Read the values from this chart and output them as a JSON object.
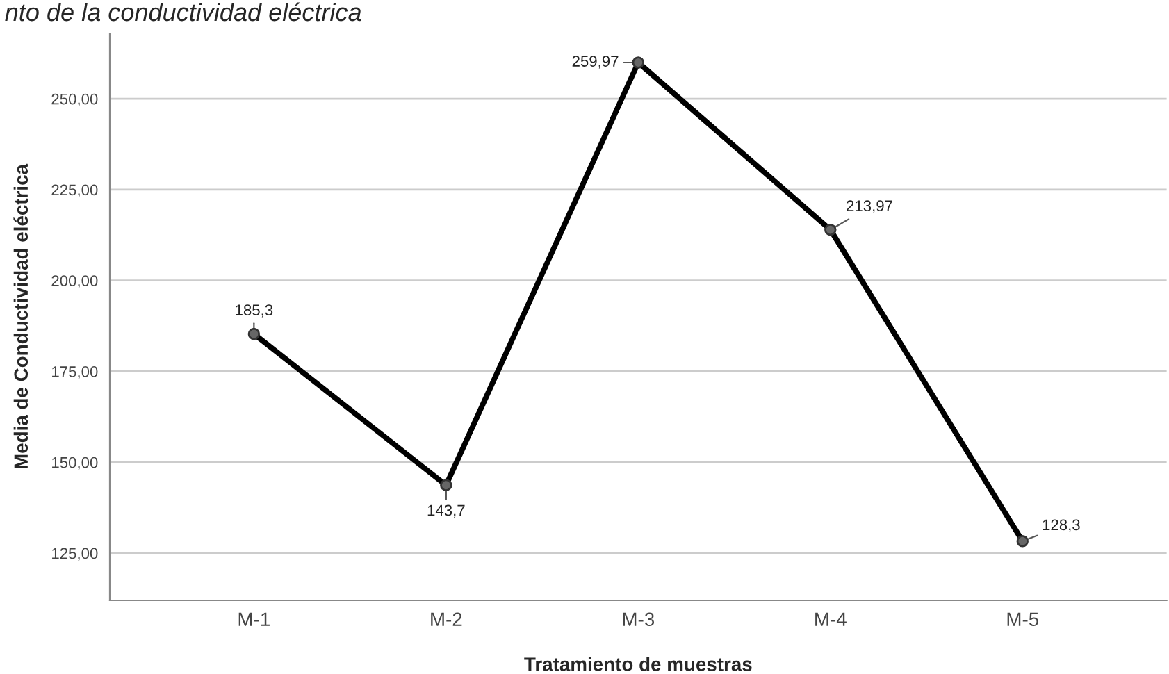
{
  "chart_data": {
    "type": "line",
    "title": "nto de la conductividad eléctrica",
    "xlabel": "Tratamiento de muestras",
    "ylabel": "Media de Conductividad eléctrica",
    "categories": [
      "M-1",
      "M-2",
      "M-3",
      "M-4",
      "M-5"
    ],
    "series": [
      {
        "color": "#000000",
        "values": [
          185.3,
          143.7,
          259.97,
          213.97,
          128.3
        ],
        "value_labels": [
          "185,3",
          "143,7",
          "259,97",
          "213,97",
          "128,3"
        ]
      }
    ],
    "ylim": [
      112,
      268
    ],
    "yticks": [
      {
        "value": 125,
        "label": "125,00"
      },
      {
        "value": 150,
        "label": "150,00"
      },
      {
        "value": 175,
        "label": "175,00"
      },
      {
        "value": 200,
        "label": "200,00"
      },
      {
        "value": 225,
        "label": "225,00"
      },
      {
        "value": 250,
        "label": "250,00"
      }
    ],
    "grid": "y",
    "marker": "circle",
    "line_style": "solid"
  }
}
